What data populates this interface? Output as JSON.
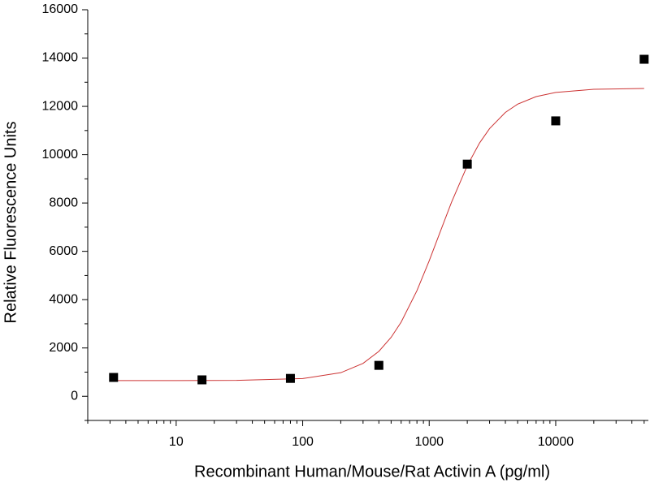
{
  "chart_data": {
    "type": "scatter",
    "xlabel": "Recombinant Human/Mouse/Rat Activin A (pg/ml)",
    "ylabel": "Relative Fluorescence Units",
    "xscale": "log",
    "xlim": [
      2,
      54000
    ],
    "ylim": [
      -1000,
      16000
    ],
    "xticks": [
      10,
      100,
      1000,
      10000
    ],
    "xminorticks": [
      2,
      3,
      4,
      5,
      6,
      7,
      8,
      9,
      20,
      30,
      40,
      50,
      60,
      70,
      80,
      90,
      200,
      300,
      400,
      500,
      600,
      700,
      800,
      900,
      2000,
      3000,
      4000,
      5000,
      6000,
      7000,
      8000,
      9000,
      20000,
      30000,
      40000,
      50000
    ],
    "yticks": [
      0,
      2000,
      4000,
      6000,
      8000,
      10000,
      12000,
      14000,
      16000
    ],
    "yminorticks": [
      -1000,
      1000,
      3000,
      5000,
      7000,
      9000,
      11000,
      13000,
      15000
    ],
    "points": {
      "color": "#000000",
      "x": [
        3.2,
        16,
        80,
        400,
        2000,
        10000,
        50000
      ],
      "values": [
        780,
        680,
        740,
        1280,
        9610,
        11400,
        13950
      ]
    },
    "fit": {
      "color": "#cc3333",
      "x": [
        3,
        10,
        30,
        100,
        200,
        300,
        400,
        500,
        600,
        800,
        1000,
        1200,
        1500,
        2000,
        2500,
        3000,
        4000,
        5000,
        7000,
        10000,
        20000,
        50000
      ],
      "values": [
        650,
        651,
        658,
        733,
        977,
        1362,
        1860,
        2440,
        3070,
        4373,
        5609,
        6700,
        8028,
        9547,
        10484,
        11081,
        11751,
        12091,
        12405,
        12578,
        12707,
        12743
      ]
    }
  }
}
